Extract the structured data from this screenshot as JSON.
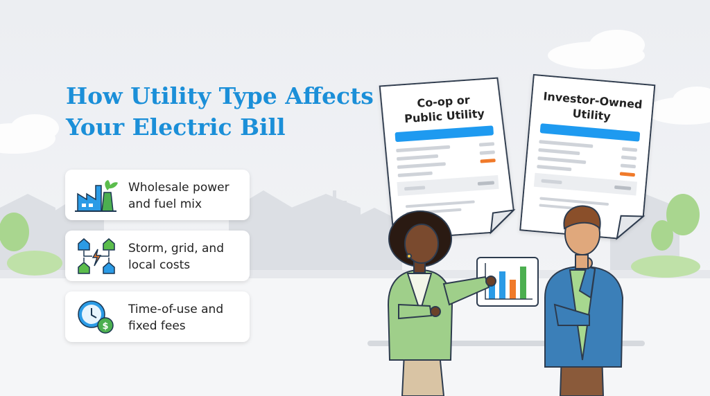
{
  "title": {
    "lines": [
      "How Utility Type Affects",
      "Your Electric Bill"
    ]
  },
  "factors": [
    {
      "lines": [
        "Wholesale power",
        "and fuel mix"
      ]
    },
    {
      "lines": [
        "Storm, grid, and",
        "local costs"
      ]
    },
    {
      "lines": [
        "Time-of-use and",
        "fixed fees"
      ]
    }
  ],
  "bills": [
    {
      "lines": [
        "Co-op or",
        "Public Utility"
      ]
    },
    {
      "lines": [
        "Investor-Owned",
        "Utility"
      ]
    }
  ]
}
